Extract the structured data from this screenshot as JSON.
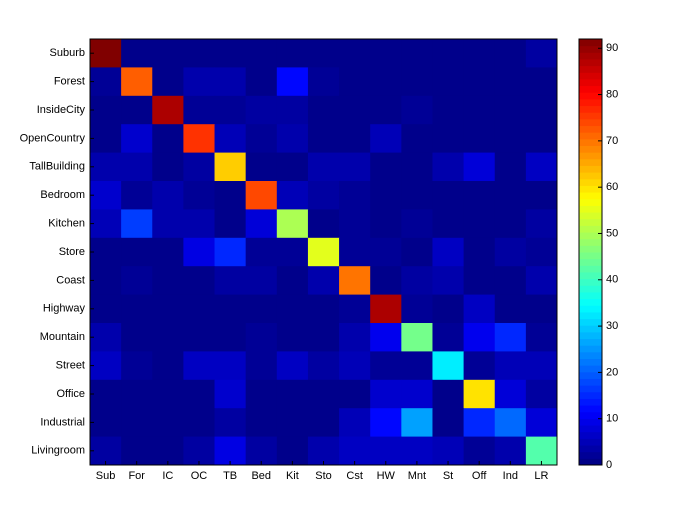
{
  "chart_data": {
    "type": "heatmap",
    "colormap": "jet",
    "x_categories": [
      "Sub",
      "For",
      "IC",
      "OC",
      "TB",
      "Bed",
      "Kit",
      "Sto",
      "Cst",
      "HW",
      "Mnt",
      "St",
      "Off",
      "Ind",
      "LR"
    ],
    "y_categories": [
      "Suburb",
      "Forest",
      "InsideCity",
      "OpenCountry",
      "TallBuilding",
      "Bedroom",
      "Kitchen",
      "Store",
      "Coast",
      "Highway",
      "Mountain",
      "Street",
      "Office",
      "Industrial",
      "Livingroom"
    ],
    "z": [
      [
        92,
        1,
        1,
        1,
        1,
        1,
        1,
        1,
        1,
        1,
        1,
        1,
        1,
        1,
        3
      ],
      [
        2,
        72,
        1,
        4,
        4,
        1,
        12,
        2,
        1,
        1,
        1,
        1,
        1,
        1,
        1
      ],
      [
        1,
        1,
        88,
        2,
        2,
        3,
        3,
        1,
        1,
        1,
        2,
        1,
        1,
        1,
        1
      ],
      [
        1,
        7,
        1,
        76,
        5,
        2,
        4,
        1,
        1,
        5,
        1,
        1,
        1,
        1,
        1
      ],
      [
        4,
        4,
        1,
        3,
        62,
        1,
        1,
        4,
        4,
        1,
        1,
        4,
        8,
        1,
        6
      ],
      [
        7,
        2,
        4,
        2,
        1,
        74,
        5,
        3,
        2,
        1,
        1,
        1,
        1,
        1,
        1
      ],
      [
        5,
        17,
        4,
        4,
        1,
        8,
        50,
        1,
        2,
        1,
        2,
        1,
        1,
        1,
        3
      ],
      [
        1,
        1,
        1,
        9,
        15,
        2,
        2,
        55,
        2,
        2,
        1,
        6,
        1,
        3,
        2
      ],
      [
        1,
        2,
        1,
        1,
        3,
        3,
        1,
        4,
        70,
        1,
        3,
        4,
        1,
        1,
        4
      ],
      [
        1,
        1,
        1,
        1,
        1,
        1,
        1,
        1,
        2,
        88,
        2,
        1,
        6,
        1,
        1
      ],
      [
        4,
        1,
        1,
        1,
        1,
        2,
        1,
        1,
        4,
        10,
        45,
        2,
        10,
        15,
        2
      ],
      [
        6,
        2,
        1,
        6,
        6,
        2,
        6,
        3,
        5,
        2,
        2,
        33,
        2,
        5,
        5
      ],
      [
        1,
        1,
        1,
        1,
        7,
        1,
        1,
        1,
        1,
        7,
        7,
        1,
        60,
        8,
        3
      ],
      [
        1,
        1,
        1,
        1,
        3,
        1,
        1,
        1,
        5,
        12,
        26,
        1,
        15,
        21,
        8
      ],
      [
        3,
        1,
        1,
        3,
        9,
        3,
        1,
        4,
        6,
        6,
        6,
        5,
        2,
        4,
        42
      ]
    ],
    "clim": [
      0,
      92
    ],
    "cticks": [
      0,
      10,
      20,
      30,
      40,
      50,
      60,
      70,
      80,
      90
    ]
  }
}
